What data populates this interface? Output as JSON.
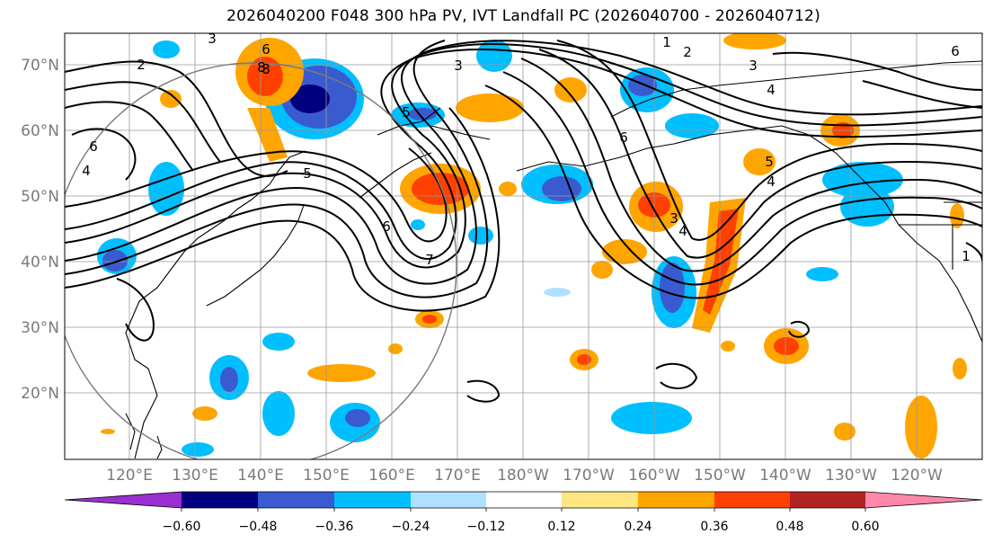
{
  "title": "2026040200 F048 300 hPa PV, IVT Landfall PC (2026040700 - 2026040712)",
  "lat_labels": [
    "70°N",
    "60°N",
    "50°N",
    "40°N",
    "30°N",
    "20°N"
  ],
  "lon_labels": [
    "120°E",
    "130°E",
    "140°E",
    "150°E",
    "160°E",
    "170°E",
    "180°W",
    "170°W",
    "160°W",
    "150°W",
    "140°W",
    "130°W",
    "120°W"
  ],
  "colorbar": {
    "ticks": [
      "−0.60",
      "−0.48",
      "−0.36",
      "−0.24",
      "−0.12",
      "0.12",
      "0.24",
      "0.36",
      "0.48",
      "0.60"
    ],
    "colors": [
      "#9b30d0",
      "#000080",
      "#3a5bd0",
      "#00bfff",
      "#b0e0ff",
      "#ffffff",
      "#ffe680",
      "#ffa500",
      "#ff4000",
      "#b22222",
      "#ff88aa"
    ]
  },
  "pv_contour_labels": [
    "1",
    "2",
    "3",
    "3",
    "3",
    "4",
    "4",
    "4",
    "5",
    "5",
    "6",
    "6",
    "6",
    "6",
    "7",
    "8",
    "8",
    "1",
    "2",
    "3",
    "4",
    "5",
    "6"
  ],
  "colors": {
    "negative_strong": "#3a5bd0",
    "negative": "#00bfff",
    "positive": "#ffa500",
    "positive_strong": "#ff4000",
    "contour": "#000000",
    "coast": "#000000",
    "grid": "#999999"
  }
}
